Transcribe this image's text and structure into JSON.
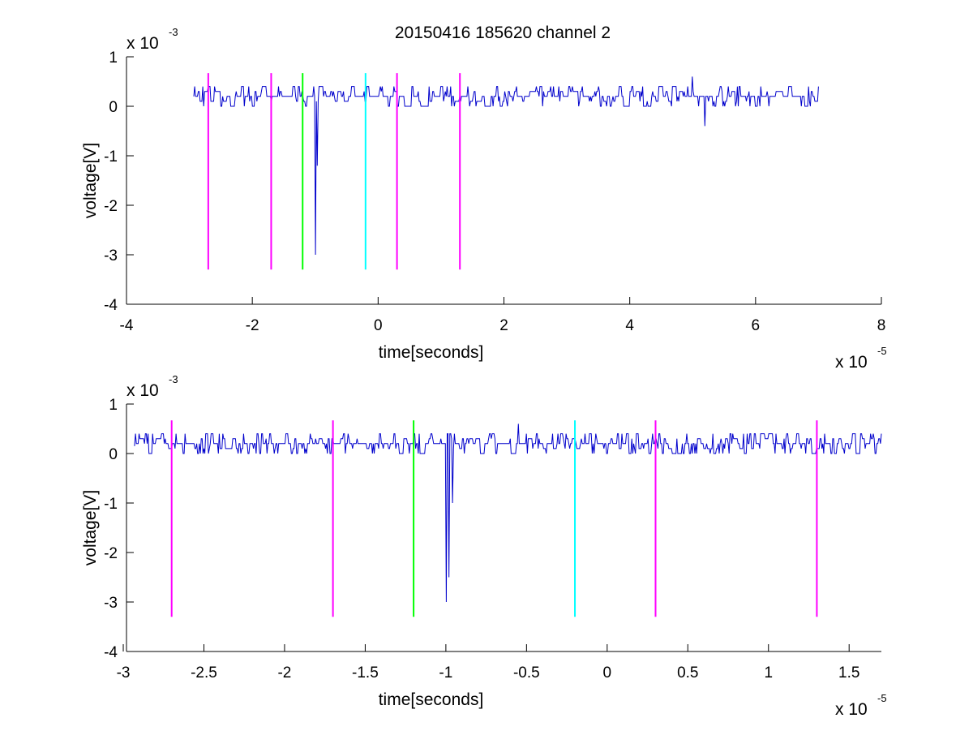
{
  "figure": {
    "title": "20150416 185620 channel 2"
  },
  "chart_data": [
    {
      "type": "line",
      "title": "20150416 185620 channel 2",
      "xlabel": "time[seconds]",
      "ylabel": "voltage[V]",
      "x_exponent_base": "x 10",
      "x_exponent_power": "-5",
      "y_exponent_base": "x 10",
      "y_exponent_power": "-3",
      "xlim": [
        -4,
        8
      ],
      "ylim": [
        -4,
        1
      ],
      "x_ticks": [
        -4,
        -2,
        0,
        2,
        4,
        6,
        8
      ],
      "x_tick_labels": [
        "-4",
        "-2",
        "0",
        "2",
        "4",
        "6",
        "8"
      ],
      "y_ticks": [
        1,
        0,
        -1,
        -2,
        -3,
        -4
      ],
      "y_tick_labels": [
        "1",
        "0",
        "-1",
        "-2",
        "-3",
        "-4"
      ],
      "series": [
        {
          "color": "#0000cc",
          "x_range": [
            -2.93,
            7.0
          ],
          "baseline": 0.15,
          "spikes": [
            {
              "x": -1.0,
              "y": -3.0
            },
            {
              "x": -0.97,
              "y": -1.2
            },
            {
              "x": 5.0,
              "y": 0.6
            },
            {
              "x": 5.2,
              "y": -0.4
            }
          ]
        }
      ],
      "markers": [
        {
          "x": -2.7,
          "color": "#ff00ff",
          "y_top": 0.67,
          "y_bottom": -3.3
        },
        {
          "x": -1.7,
          "color": "#ff00ff",
          "y_top": 0.67,
          "y_bottom": -3.3
        },
        {
          "x": -1.2,
          "color": "#00ff00",
          "y_top": 0.67,
          "y_bottom": -3.3
        },
        {
          "x": -0.2,
          "color": "#00ffff",
          "y_top": 0.67,
          "y_bottom": -3.3
        },
        {
          "x": 0.3,
          "color": "#ff00ff",
          "y_top": 0.67,
          "y_bottom": -3.3
        },
        {
          "x": 1.3,
          "color": "#ff00ff",
          "y_top": 0.67,
          "y_bottom": -3.3
        }
      ]
    },
    {
      "type": "line",
      "title": "",
      "xlabel": "time[seconds]",
      "ylabel": "voltage[V]",
      "x_exponent_base": "x 10",
      "x_exponent_power": "-5",
      "y_exponent_base": "x 10",
      "y_exponent_power": "-3",
      "xlim": [
        -2.98,
        1.7
      ],
      "ylim": [
        -4,
        1
      ],
      "x_ticks": [
        -3,
        -2.5,
        -2,
        -1.5,
        -1,
        -0.5,
        0,
        0.5,
        1,
        1.5
      ],
      "x_tick_labels": [
        "-3",
        "-2.5",
        "-2",
        "-1.5",
        "-1",
        "-0.5",
        "0",
        "0.5",
        "1",
        "1.5"
      ],
      "y_ticks": [
        1,
        0,
        -1,
        -2,
        -3,
        -4
      ],
      "y_tick_labels": [
        "1",
        "0",
        "-1",
        "-2",
        "-3",
        "-4"
      ],
      "series": [
        {
          "color": "#0000cc",
          "x_range": [
            -2.93,
            1.7
          ],
          "baseline": 0.15,
          "spikes": [
            {
              "x": -1.0,
              "y": -3.0
            },
            {
              "x": -0.98,
              "y": -2.5
            },
            {
              "x": -0.96,
              "y": -1.0
            },
            {
              "x": -0.55,
              "y": 0.6
            }
          ]
        }
      ],
      "markers": [
        {
          "x": -2.7,
          "color": "#ff00ff",
          "y_top": 0.67,
          "y_bottom": -3.3
        },
        {
          "x": -1.7,
          "color": "#ff00ff",
          "y_top": 0.67,
          "y_bottom": -3.3
        },
        {
          "x": -1.2,
          "color": "#00ff00",
          "y_top": 0.67,
          "y_bottom": -3.3
        },
        {
          "x": -0.2,
          "color": "#00ffff",
          "y_top": 0.67,
          "y_bottom": -3.3
        },
        {
          "x": 0.3,
          "color": "#ff00ff",
          "y_top": 0.67,
          "y_bottom": -3.3
        },
        {
          "x": 1.3,
          "color": "#ff00ff",
          "y_top": 0.67,
          "y_bottom": -3.3
        }
      ]
    }
  ]
}
